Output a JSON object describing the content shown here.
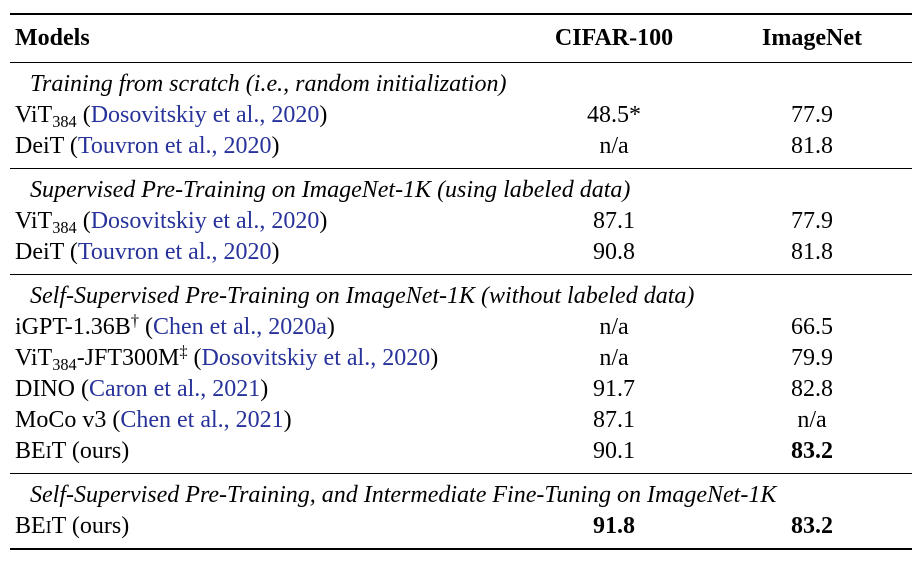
{
  "header": [
    "Models",
    "CIFAR-100",
    "ImageNet"
  ],
  "cite_color": "#27339a",
  "sections": [
    {
      "title": "Training from scratch (i.e., random initialization)",
      "rows": [
        {
          "model": [
            {
              "text": "ViT"
            },
            {
              "text": "384",
              "kind": "sub"
            },
            {
              "text": " ("
            },
            {
              "text": "Dosovitskiy et al., 2020",
              "kind": "cite"
            },
            {
              "text": ")"
            }
          ],
          "cells": [
            "48.5*",
            "77.9"
          ],
          "bold": [
            false,
            false
          ]
        },
        {
          "model": [
            {
              "text": "DeiT ("
            },
            {
              "text": "Touvron et al., 2020",
              "kind": "cite"
            },
            {
              "text": ")"
            }
          ],
          "cells": [
            "n/a",
            "81.8"
          ],
          "bold": [
            false,
            false
          ]
        }
      ]
    },
    {
      "title": "Supervised Pre-Training on ImageNet-1K (using labeled data)",
      "rows": [
        {
          "model": [
            {
              "text": "ViT"
            },
            {
              "text": "384",
              "kind": "sub"
            },
            {
              "text": " ("
            },
            {
              "text": "Dosovitskiy et al., 2020",
              "kind": "cite"
            },
            {
              "text": ")"
            }
          ],
          "cells": [
            "87.1",
            "77.9"
          ],
          "bold": [
            false,
            false
          ]
        },
        {
          "model": [
            {
              "text": "DeiT ("
            },
            {
              "text": "Touvron et al., 2020",
              "kind": "cite"
            },
            {
              "text": ")"
            }
          ],
          "cells": [
            "90.8",
            "81.8"
          ],
          "bold": [
            false,
            false
          ]
        }
      ]
    },
    {
      "title": "Self-Supervised Pre-Training on ImageNet-1K (without labeled data)",
      "rows": [
        {
          "model": [
            {
              "text": "iGPT-1.36B"
            },
            {
              "text": "†",
              "kind": "sup"
            },
            {
              "text": " ("
            },
            {
              "text": "Chen et al., 2020a",
              "kind": "cite"
            },
            {
              "text": ")"
            }
          ],
          "cells": [
            "n/a",
            "66.5"
          ],
          "bold": [
            false,
            false
          ]
        },
        {
          "model": [
            {
              "text": "ViT"
            },
            {
              "text": "384",
              "kind": "sub"
            },
            {
              "text": "-JFT300M"
            },
            {
              "text": "‡",
              "kind": "sup"
            },
            {
              "text": " ("
            },
            {
              "text": "Dosovitskiy et al., 2020",
              "kind": "cite"
            },
            {
              "text": ")"
            }
          ],
          "cells": [
            "n/a",
            "79.9"
          ],
          "bold": [
            false,
            false
          ]
        },
        {
          "model": [
            {
              "text": "DINO ("
            },
            {
              "text": "Caron et al., 2021",
              "kind": "cite"
            },
            {
              "text": ")"
            }
          ],
          "cells": [
            "91.7",
            "82.8"
          ],
          "bold": [
            false,
            false
          ]
        },
        {
          "model": [
            {
              "text": "MoCo v3 ("
            },
            {
              "text": "Chen et al., 2021",
              "kind": "cite"
            },
            {
              "text": ")"
            }
          ],
          "cells": [
            "87.1",
            "n/a"
          ],
          "bold": [
            false,
            false
          ]
        },
        {
          "model": [
            {
              "text": "BE"
            },
            {
              "text": "I",
              "kind": "sc"
            },
            {
              "text": "T (ours)"
            }
          ],
          "cells": [
            "90.1",
            "83.2"
          ],
          "bold": [
            false,
            true
          ]
        }
      ]
    },
    {
      "title": "Self-Supervised Pre-Training, and Intermediate Fine-Tuning on ImageNet-1K",
      "rows": [
        {
          "model": [
            {
              "text": "BE"
            },
            {
              "text": "I",
              "kind": "sc"
            },
            {
              "text": "T (ours)"
            }
          ],
          "cells": [
            "91.8",
            "83.2"
          ],
          "bold": [
            true,
            true
          ]
        }
      ]
    }
  ]
}
